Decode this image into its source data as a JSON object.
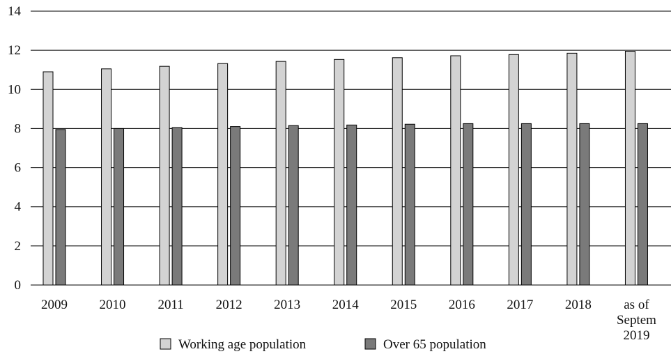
{
  "chart_data": {
    "type": "bar",
    "title": "",
    "xlabel": "",
    "ylabel": "",
    "ylim": [
      0,
      14
    ],
    "y_ticks": [
      {
        "value": 0,
        "label": "0"
      },
      {
        "value": 2,
        "label": "2"
      },
      {
        "value": 4,
        "label": "4"
      },
      {
        "value": 6,
        "label": "6"
      },
      {
        "value": 8,
        "label": "8"
      },
      {
        "value": 10,
        "label": "10"
      },
      {
        "value": 12,
        "label": "12"
      },
      {
        "value": 14,
        "label": "14"
      }
    ],
    "grid": true,
    "legend_position": "bottom",
    "categories": [
      "2009",
      "2010",
      "2011",
      "2012",
      "2013",
      "2014",
      "2015",
      "2016",
      "2017",
      "2018",
      "as of Septem 2019"
    ],
    "category_label_lines": [
      [
        "2009"
      ],
      [
        "2010"
      ],
      [
        "2011"
      ],
      [
        "2012"
      ],
      [
        "2013"
      ],
      [
        "2014"
      ],
      [
        "2015"
      ],
      [
        "2016"
      ],
      [
        "2017"
      ],
      [
        "2018"
      ],
      [
        "as of",
        "Septem",
        "2019"
      ]
    ],
    "series": [
      {
        "name": "Working age population",
        "color": "#d3d3d3",
        "values": [
          10.9,
          11.05,
          11.18,
          11.32,
          11.43,
          11.53,
          11.62,
          11.72,
          11.78,
          11.85,
          11.95
        ]
      },
      {
        "name": "Over 65 population",
        "color": "#7a7a7a",
        "values": [
          7.95,
          8.0,
          8.05,
          8.1,
          8.15,
          8.18,
          8.22,
          8.25,
          8.25,
          8.25,
          8.25
        ]
      }
    ]
  }
}
